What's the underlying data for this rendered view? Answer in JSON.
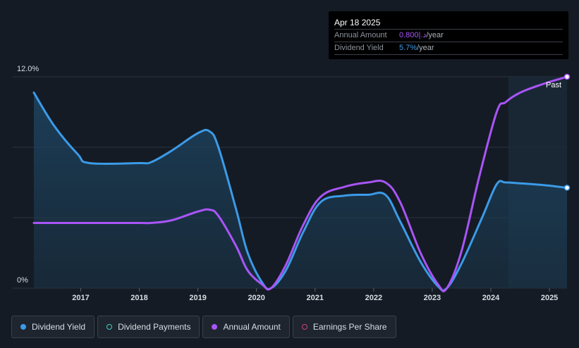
{
  "tooltip": {
    "date": "Apr 18 2025",
    "annual_label": "Annual Amount",
    "annual_value": "0.800|.د",
    "annual_unit": "/year",
    "yield_label": "Dividend Yield",
    "yield_value": "5.7%",
    "yield_unit": "/year"
  },
  "past_label": "Past",
  "legend": [
    {
      "label": "Dividend Yield",
      "name": "legend-dividend-yield"
    },
    {
      "label": "Dividend Payments",
      "name": "legend-dividend-payments"
    },
    {
      "label": "Annual Amount",
      "name": "legend-annual-amount"
    },
    {
      "label": "Earnings Per Share",
      "name": "legend-earnings-per-share"
    }
  ],
  "colors": {
    "dividend_yield": "#3b9be8",
    "annual_amount": "#a855f7",
    "background": "#151b24",
    "area_fill": "#1b3a52"
  },
  "chart_data": {
    "type": "line",
    "y_axis": {
      "top_label": "12.0%",
      "bottom_label": "0%",
      "ylim": [
        0,
        12
      ]
    },
    "x_ticks": [
      "2017",
      "2018",
      "2019",
      "2020",
      "2021",
      "2022",
      "2023",
      "2024",
      "2025"
    ],
    "xlim": [
      2016.2,
      2025.3
    ],
    "series": [
      {
        "name": "Dividend Yield",
        "color": "#3b9be8",
        "x": [
          2016.2,
          2016.55,
          2016.95,
          2017.15,
          2018.0,
          2018.2,
          2018.55,
          2019.0,
          2019.2,
          2019.35,
          2019.65,
          2019.85,
          2020.1,
          2020.25,
          2020.5,
          2020.8,
          2021.1,
          2021.5,
          2021.9,
          2022.2,
          2022.45,
          2022.8,
          2023.1,
          2023.25,
          2023.5,
          2023.85,
          2024.1,
          2024.25,
          2024.5,
          2024.9,
          2025.3
        ],
        "y": [
          11.1,
          9.2,
          7.6,
          7.1,
          7.1,
          7.15,
          7.8,
          8.8,
          8.9,
          8.0,
          4.5,
          2.0,
          0.3,
          0.0,
          1.0,
          3.2,
          4.9,
          5.25,
          5.3,
          5.3,
          3.8,
          1.5,
          0.1,
          0.0,
          1.4,
          4.0,
          5.9,
          6.0,
          5.95,
          5.85,
          5.7
        ]
      },
      {
        "name": "Annual Amount",
        "color": "#a855f7",
        "x": [
          2016.2,
          2017.0,
          2018.0,
          2018.2,
          2018.55,
          2019.0,
          2019.2,
          2019.35,
          2019.65,
          2019.85,
          2020.1,
          2020.25,
          2020.5,
          2020.8,
          2021.1,
          2021.5,
          2021.9,
          2022.2,
          2022.45,
          2022.8,
          2023.1,
          2023.25,
          2023.5,
          2023.8,
          2024.1,
          2024.25,
          2024.5,
          2024.9,
          2025.3
        ],
        "y": [
          3.7,
          3.7,
          3.7,
          3.7,
          3.85,
          4.35,
          4.45,
          4.1,
          2.4,
          1.0,
          0.2,
          0.0,
          1.3,
          3.6,
          5.2,
          5.75,
          6.0,
          6.0,
          4.9,
          2.0,
          0.2,
          0.0,
          2.1,
          6.3,
          10.0,
          10.55,
          11.1,
          11.6,
          12.0
        ]
      }
    ],
    "forecast_band_start": 2024.3
  }
}
